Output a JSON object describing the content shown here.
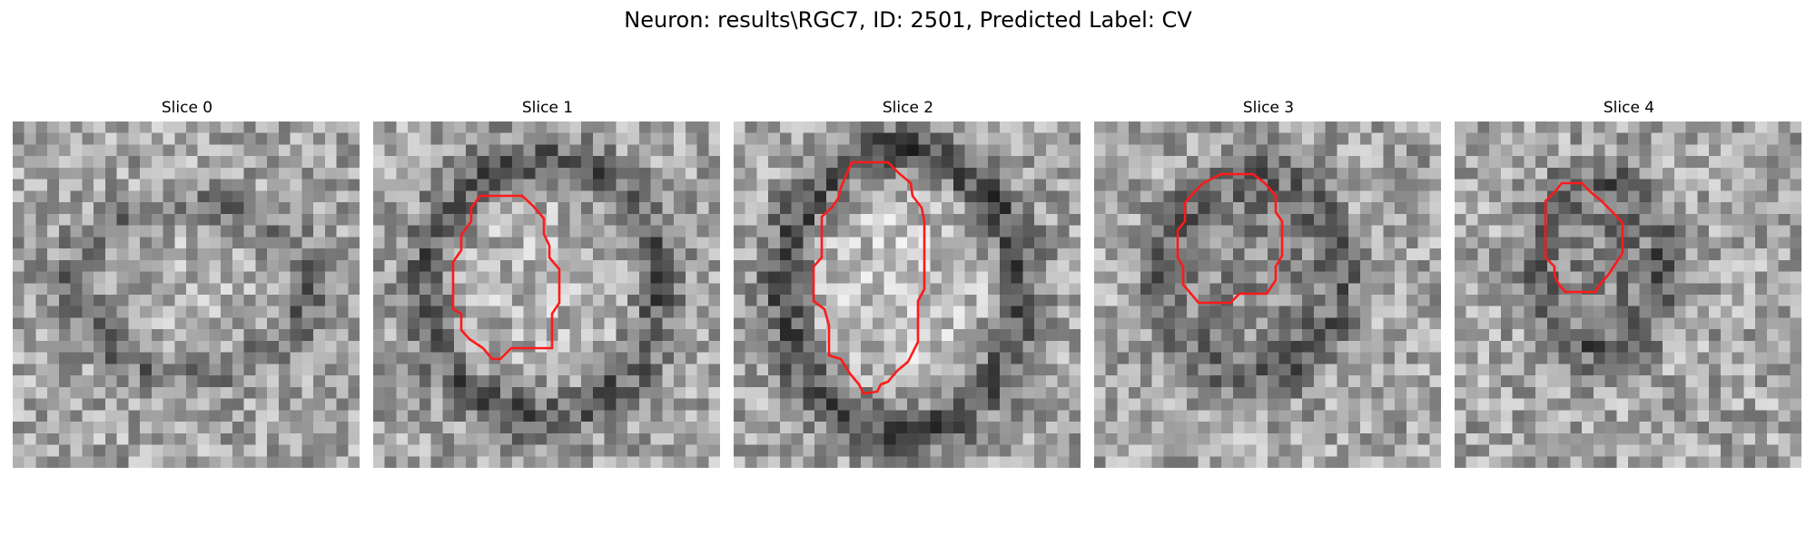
{
  "figure": {
    "title": "Neuron: results\\RGC7, ID: 2501, Predicted Label: CV"
  },
  "panels": [
    {
      "title": "Slice 0",
      "has_contour": false
    },
    {
      "title": "Slice 1",
      "has_contour": true
    },
    {
      "title": "Slice 2",
      "has_contour": true
    },
    {
      "title": "Slice 3",
      "has_contour": true
    },
    {
      "title": "Slice 4",
      "has_contour": true
    }
  ],
  "colors": {
    "contour": "#ff1a1a",
    "background": "#ffffff"
  }
}
